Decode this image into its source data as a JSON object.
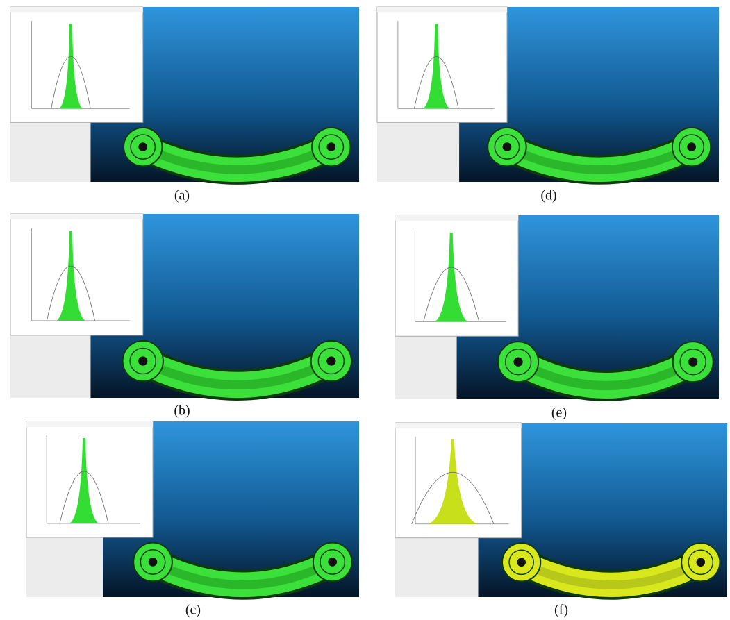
{
  "panels": [
    {
      "caption": "(a)"
    },
    {
      "caption": "(d)"
    },
    {
      "caption": "(b)"
    },
    {
      "caption": "(e)"
    },
    {
      "caption": "(c)"
    },
    {
      "caption": "(f)"
    }
  ]
}
